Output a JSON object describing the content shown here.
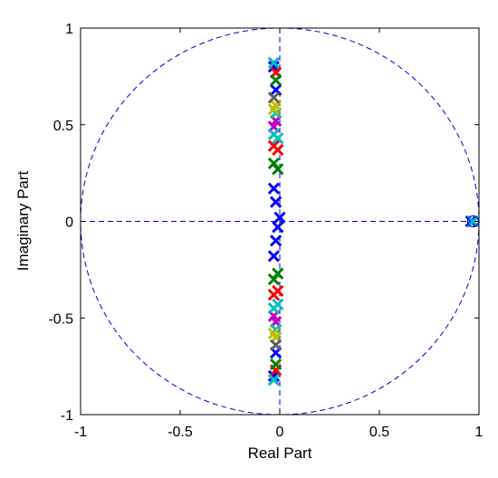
{
  "chart_data": {
    "type": "scatter",
    "title": "",
    "xlabel": "Real Part",
    "ylabel": "Imaginary Part",
    "xlim": [
      -1,
      1
    ],
    "ylim": [
      -1,
      1
    ],
    "xticks": [
      -1,
      -0.5,
      0,
      0.5,
      1
    ],
    "yticks": [
      -1,
      -0.5,
      0,
      0.5,
      1
    ],
    "xtick_labels": [
      "-1",
      "-0.5",
      "0",
      "0.5",
      "1"
    ],
    "ytick_labels": [
      "-1",
      "-0.5",
      "0",
      "0.5",
      "1"
    ],
    "grid": false,
    "unit_circle": true,
    "reference_lines": [
      "x = 0",
      "y = 0"
    ],
    "colors": {
      "guide": "#0000cc",
      "frame": "#000000",
      "zero_marker": "#0000ff"
    },
    "zeros": [
      {
        "re": 0.97,
        "im": 0
      }
    ],
    "series": [
      {
        "color": "#0000ff",
        "points": [
          {
            "re": -0.03,
            "im": 0.8
          },
          {
            "re": -0.02,
            "im": 0.68
          },
          {
            "re": -0.03,
            "im": 0.17
          },
          {
            "re": -0.02,
            "im": 0.1
          },
          {
            "re": 0.0,
            "im": 0.02
          },
          {
            "re": -0.01,
            "im": -0.03
          },
          {
            "re": -0.02,
            "im": -0.1
          },
          {
            "re": -0.03,
            "im": -0.18
          },
          {
            "re": -0.02,
            "im": -0.68
          },
          {
            "re": -0.03,
            "im": -0.8
          },
          {
            "re": 0.96,
            "im": 0.0
          }
        ]
      },
      {
        "color": "#ff0000",
        "points": [
          {
            "re": -0.02,
            "im": 0.77
          },
          {
            "re": -0.03,
            "im": 0.39
          },
          {
            "re": -0.01,
            "im": 0.37
          },
          {
            "re": -0.03,
            "im": -0.38
          },
          {
            "re": -0.01,
            "im": -0.36
          },
          {
            "re": -0.02,
            "im": -0.77
          }
        ]
      },
      {
        "color": "#008000",
        "points": [
          {
            "re": -0.02,
            "im": 0.73
          },
          {
            "re": -0.03,
            "im": 0.3
          },
          {
            "re": -0.01,
            "im": 0.27
          },
          {
            "re": -0.03,
            "im": -0.3
          },
          {
            "re": -0.01,
            "im": -0.27
          },
          {
            "re": -0.02,
            "im": -0.74
          }
        ]
      },
      {
        "color": "#bf00bf",
        "points": [
          {
            "re": -0.02,
            "im": 0.52
          },
          {
            "re": -0.03,
            "im": 0.49
          },
          {
            "re": -0.02,
            "im": -0.52
          },
          {
            "re": -0.03,
            "im": -0.49
          }
        ]
      },
      {
        "color": "#00bfbf",
        "points": [
          {
            "re": -0.03,
            "im": 0.82
          },
          {
            "re": -0.02,
            "im": 0.56
          },
          {
            "re": -0.03,
            "im": 0.45
          },
          {
            "re": -0.01,
            "im": 0.43
          },
          {
            "re": -0.03,
            "im": -0.45
          },
          {
            "re": -0.01,
            "im": -0.43
          },
          {
            "re": -0.02,
            "im": -0.56
          },
          {
            "re": -0.03,
            "im": -0.82
          },
          {
            "re": 0.97,
            "im": 0.0
          }
        ]
      },
      {
        "color": "#bfbf00",
        "points": [
          {
            "re": -0.03,
            "im": 0.58
          },
          {
            "re": -0.02,
            "im": 0.6
          },
          {
            "re": -0.03,
            "im": -0.58
          },
          {
            "re": -0.02,
            "im": -0.6
          }
        ]
      },
      {
        "color": "#606060",
        "points": [
          {
            "re": -0.03,
            "im": 0.64
          },
          {
            "re": -0.02,
            "im": -0.64
          }
        ]
      }
    ]
  }
}
